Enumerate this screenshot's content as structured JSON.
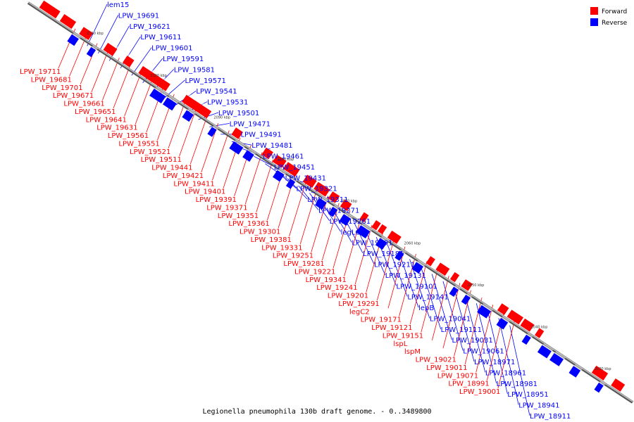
{
  "caption": "Legionella pneumophila 130b draft genome. - 0..3489800",
  "colors": {
    "forward": "#ff0000",
    "reverse": "#0000ff",
    "axis": "#8c8c8c"
  },
  "legend": [
    {
      "label": "Forward",
      "color": "#ff0000"
    },
    {
      "label": "Reverse",
      "color": "#0000ff"
    }
  ],
  "scale_labels": [
    "2110 kbp",
    "2100 kbp",
    "2090 kbp",
    "2080 kbp",
    "2070 kbp",
    "2060 kbp",
    "2050 kbp",
    "2040 kbp",
    "2030 kbp"
  ],
  "labels": [
    {
      "text": "lem15",
      "strand": "reverse"
    },
    {
      "text": "LPW_19691",
      "strand": "reverse"
    },
    {
      "text": "LPW_19621",
      "strand": "reverse"
    },
    {
      "text": "LPW_19611",
      "strand": "reverse"
    },
    {
      "text": "LPW_19601",
      "strand": "reverse"
    },
    {
      "text": "LPW_19591",
      "strand": "reverse"
    },
    {
      "text": "LPW_19581",
      "strand": "reverse"
    },
    {
      "text": "LPW_19571",
      "strand": "reverse"
    },
    {
      "text": "LPW_19541",
      "strand": "reverse"
    },
    {
      "text": "LPW_19531",
      "strand": "reverse"
    },
    {
      "text": "LPW_19501",
      "strand": "reverse"
    },
    {
      "text": "LPW_19471",
      "strand": "reverse"
    },
    {
      "text": "LPW_19491",
      "strand": "reverse"
    },
    {
      "text": "LPW_19481",
      "strand": "reverse"
    },
    {
      "text": "LPW_19461",
      "strand": "reverse"
    },
    {
      "text": "LPW_19451",
      "strand": "reverse"
    },
    {
      "text": "LPW_19431",
      "strand": "reverse"
    },
    {
      "text": "LPW_19321",
      "strand": "reverse"
    },
    {
      "text": "LPW_19311",
      "strand": "reverse"
    },
    {
      "text": "LPW_19271",
      "strand": "reverse"
    },
    {
      "text": "LPW_19261",
      "strand": "reverse"
    },
    {
      "text": "legLC8",
      "strand": "reverse"
    },
    {
      "text": "LPW_19191",
      "strand": "reverse"
    },
    {
      "text": "LPW_19181",
      "strand": "reverse"
    },
    {
      "text": "LPW_19211",
      "strand": "reverse"
    },
    {
      "text": "LPW_19131",
      "strand": "reverse"
    },
    {
      "text": "LPW_19101",
      "strand": "reverse"
    },
    {
      "text": "LPW_19141",
      "strand": "reverse"
    },
    {
      "text": "lepB",
      "strand": "reverse"
    },
    {
      "text": "LPW_19041",
      "strand": "reverse"
    },
    {
      "text": "LPW_19111",
      "strand": "reverse"
    },
    {
      "text": "LPW_19031",
      "strand": "reverse"
    },
    {
      "text": "LPW_19061",
      "strand": "reverse"
    },
    {
      "text": "LPW_18971",
      "strand": "reverse"
    },
    {
      "text": "LPW_18961",
      "strand": "reverse"
    },
    {
      "text": "LPW_18981",
      "strand": "reverse"
    },
    {
      "text": "LPW_19711",
      "strand": "forward"
    },
    {
      "text": "LPW_19681",
      "strand": "forward"
    },
    {
      "text": "LPW_19701",
      "strand": "forward"
    },
    {
      "text": "LPW_19671",
      "strand": "forward"
    },
    {
      "text": "LPW_19661",
      "strand": "forward"
    },
    {
      "text": "LPW_19651",
      "strand": "forward"
    },
    {
      "text": "LPW_19641",
      "strand": "forward"
    },
    {
      "text": "LPW_19631",
      "strand": "forward"
    },
    {
      "text": "LPW_19561",
      "strand": "forward"
    },
    {
      "text": "LPW_19551",
      "strand": "forward"
    },
    {
      "text": "LPW_19521",
      "strand": "forward"
    },
    {
      "text": "LPW_19511",
      "strand": "forward"
    },
    {
      "text": "LPW_19441",
      "strand": "forward"
    },
    {
      "text": "LPW_19421",
      "strand": "forward"
    },
    {
      "text": "LPW_19411",
      "strand": "forward"
    },
    {
      "text": "LPW_19401",
      "strand": "forward"
    },
    {
      "text": "LPW_19391",
      "strand": "forward"
    },
    {
      "text": "LPW_19371",
      "strand": "forward"
    },
    {
      "text": "LPW_19351",
      "strand": "forward"
    },
    {
      "text": "LPW_19361",
      "strand": "forward"
    },
    {
      "text": "LPW_19301",
      "strand": "forward"
    },
    {
      "text": "LPW_19381",
      "strand": "forward"
    },
    {
      "text": "LPW_19331",
      "strand": "forward"
    },
    {
      "text": "LPW_19251",
      "strand": "forward"
    },
    {
      "text": "LPW_19281",
      "strand": "forward"
    },
    {
      "text": "LPW_19221",
      "strand": "forward"
    },
    {
      "text": "LPW_19341",
      "strand": "forward"
    },
    {
      "text": "LPW_19241",
      "strand": "forward"
    },
    {
      "text": "LPW_19201",
      "strand": "forward"
    },
    {
      "text": "LPW_19291",
      "strand": "forward"
    },
    {
      "text": "legC2",
      "strand": "forward"
    },
    {
      "text": "LPW_19171",
      "strand": "forward"
    },
    {
      "text": "LPW_19121",
      "strand": "forward"
    },
    {
      "text": "LPW_19151",
      "strand": "forward"
    },
    {
      "text": "lspL",
      "strand": "forward"
    },
    {
      "text": "lspM",
      "strand": "forward"
    },
    {
      "text": "LPW_19021",
      "strand": "forward"
    },
    {
      "text": "LPW_19011",
      "strand": "forward"
    },
    {
      "text": "LPW_19071",
      "strand": "forward"
    },
    {
      "text": "LPW_18991",
      "strand": "forward"
    },
    {
      "text": "LPW_19001",
      "strand": "forward"
    },
    {
      "text": "LPW_18951",
      "strand": "reverse"
    },
    {
      "text": "LPW_18941",
      "strand": "reverse"
    },
    {
      "text": "LPW_18911",
      "strand": "reverse"
    }
  ]
}
